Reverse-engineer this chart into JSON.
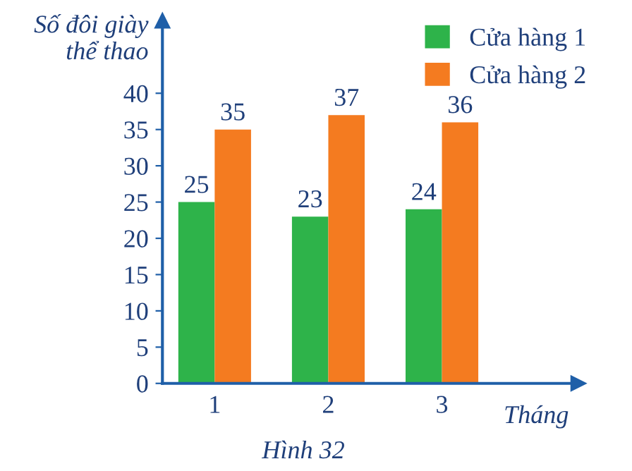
{
  "chart_data": {
    "type": "bar",
    "xlabel": "Tháng",
    "ylabel": "Số đôi giày\nthể thao",
    "categories": [
      "1",
      "2",
      "3"
    ],
    "series": [
      {
        "name": "Cửa hàng 1",
        "color": "#2eb34a",
        "values": [
          25,
          23,
          24
        ]
      },
      {
        "name": "Cửa hàng 2",
        "color": "#f47b20",
        "values": [
          35,
          37,
          36
        ]
      }
    ],
    "ylim": [
      0,
      50
    ],
    "yticks": [
      0,
      5,
      10,
      15,
      20,
      25,
      30,
      35,
      40
    ],
    "data_labels": true,
    "grid": false,
    "legend": "top right",
    "annotations": [
      "Hình 32"
    ]
  }
}
